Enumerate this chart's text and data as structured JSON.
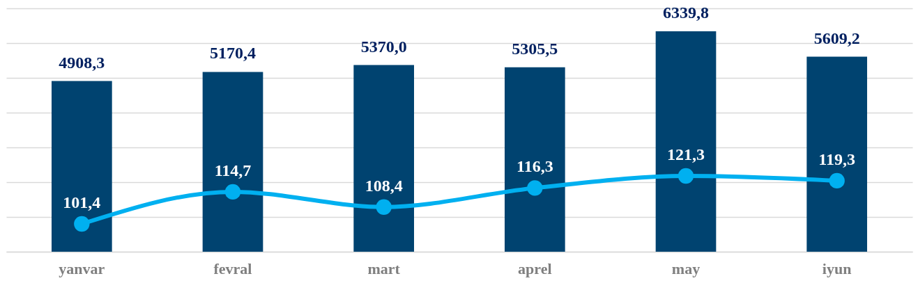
{
  "chart_data": {
    "type": "bar",
    "categories": [
      "yanvar",
      "fevral",
      "mart",
      "aprel",
      "may",
      "iyun"
    ],
    "series": [
      {
        "color": "#004370",
        "values": [
          4908.3,
          5170.4,
          5370.0,
          5305.5,
          6339.8,
          5609.2
        ],
        "value_labels": [
          "4908,3",
          "5170,4",
          "5370,0",
          "5305,5",
          "6339,8",
          "5609,2"
        ]
      },
      {
        "type": "line",
        "axis": "y2",
        "color": "#00b0f0",
        "marker": "circle",
        "values": [
          101.4,
          114.7,
          108.4,
          116.3,
          121.3,
          119.3
        ],
        "value_labels": [
          "101,4",
          "114,7",
          "108,4",
          "116,3",
          "121,3",
          "119,3"
        ]
      }
    ],
    "grid": "y",
    "tick_labels": "x"
  }
}
